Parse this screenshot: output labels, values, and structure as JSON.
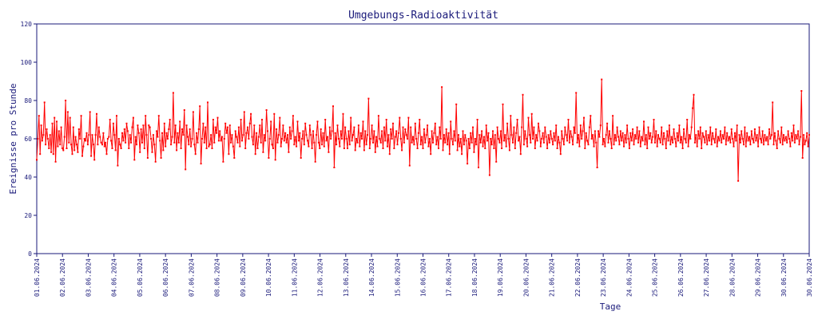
{
  "chart_data": {
    "type": "line",
    "title": "Umgebungs-Radioaktivität",
    "xlabel": "Tage",
    "ylabel": "Ereignisse pro Stunde",
    "ylim": [
      0,
      120
    ],
    "yticks": [
      "0",
      "20",
      "40",
      "60",
      "80",
      "100",
      "120"
    ],
    "xticks": [
      "01.06.2024",
      "02.06.2024",
      "03.06.2024",
      "04.06.2024",
      "05.06.2024",
      "06.06.2024",
      "07.06.2024",
      "08.06.2024",
      "09.06.2024",
      "10.06.2024",
      "11.06.2024",
      "12.06.2024",
      "13.06.2024",
      "14.06.2024",
      "15.06.2024",
      "16.06.2024",
      "17.06.2024",
      "18.06.2024",
      "19.06.2024",
      "20.06.2024",
      "21.06.2024",
      "22.06.2024",
      "23.06.2024",
      "24.06.2024",
      "25.06.2024",
      "26.06.2024",
      "27.06.2024",
      "28.06.2024",
      "29.06.2024",
      "30.06.2024",
      "30.06.2024"
    ],
    "grid": false,
    "series": [
      {
        "color": "#ff0000",
        "marker": "square",
        "x_unit": "hours since 01.06.2024 00:00",
        "values": [
          49,
          60,
          72,
          52,
          67,
          59,
          62,
          79,
          57,
          65,
          60,
          55,
          62,
          53,
          68,
          52,
          71,
          48,
          69,
          56,
          64,
          57,
          66,
          55,
          54,
          61,
          80,
          55,
          74,
          58,
          71,
          57,
          52,
          66,
          54,
          61,
          57,
          53,
          65,
          60,
          72,
          51,
          56,
          60,
          59,
          63,
          57,
          62,
          74,
          51,
          62,
          57,
          49,
          62,
          73,
          57,
          66,
          61,
          58,
          57,
          63,
          56,
          58,
          52,
          60,
          61,
          70,
          59,
          55,
          68,
          62,
          54,
          72,
          46,
          60,
          57,
          55,
          63,
          59,
          65,
          58,
          68,
          64,
          55,
          62,
          58,
          66,
          71,
          49,
          61,
          57,
          67,
          63,
          53,
          65,
          58,
          67,
          55,
          72,
          62,
          50,
          67,
          66,
          60,
          53,
          62,
          57,
          48,
          64,
          61,
          72,
          59,
          50,
          63,
          54,
          68,
          56,
          63,
          60,
          65,
          70,
          57,
          61,
          84,
          58,
          67,
          54,
          63,
          58,
          69,
          55,
          65,
          62,
          75,
          44,
          67,
          61,
          57,
          65,
          56,
          60,
          74,
          57,
          52,
          63,
          58,
          65,
          77,
          47,
          60,
          68,
          58,
          66,
          55,
          79,
          56,
          57,
          62,
          55,
          70,
          58,
          66,
          63,
          71,
          59,
          64,
          59,
          61,
          48,
          60,
          68,
          63,
          66,
          52,
          67,
          58,
          62,
          56,
          50,
          64,
          61,
          58,
          66,
          56,
          70,
          59,
          62,
          74,
          55,
          63,
          66,
          60,
          68,
          73,
          61,
          57,
          67,
          52,
          63,
          55,
          61,
          67,
          58,
          70,
          53,
          62,
          59,
          75,
          64,
          50,
          60,
          69,
          57,
          55,
          73,
          49,
          65,
          58,
          62,
          71,
          56,
          60,
          67,
          59,
          63,
          58,
          62,
          53,
          66,
          60,
          64,
          72,
          57,
          61,
          56,
          69,
          59,
          63,
          50,
          60,
          64,
          57,
          68,
          62,
          59,
          56,
          67,
          62,
          55,
          64,
          58,
          48,
          62,
          69,
          58,
          55,
          65,
          57,
          63,
          56,
          70,
          59,
          61,
          53,
          66,
          60,
          64,
          77,
          45,
          63,
          57,
          67,
          60,
          56,
          64,
          60,
          73,
          55,
          66,
          60,
          55,
          64,
          57,
          71,
          59,
          62,
          66,
          54,
          60,
          58,
          67,
          56,
          63,
          60,
          69,
          54,
          64,
          57,
          62,
          81,
          55,
          60,
          67,
          58,
          64,
          53,
          61,
          56,
          72,
          60,
          58,
          64,
          55,
          66,
          59,
          70,
          56,
          62,
          52,
          65,
          60,
          68,
          55,
          61,
          64,
          57,
          63,
          71,
          60,
          54,
          66,
          58,
          65,
          62,
          60,
          71,
          46,
          66,
          58,
          61,
          57,
          68,
          60,
          55,
          63,
          70,
          57,
          61,
          55,
          65,
          58,
          62,
          67,
          56,
          60,
          52,
          64,
          58,
          63,
          68,
          57,
          61,
          55,
          66,
          60,
          87,
          54,
          62,
          58,
          65,
          57,
          63,
          52,
          69,
          60,
          57,
          64,
          59,
          78,
          54,
          62,
          56,
          60,
          52,
          64,
          57,
          62,
          59,
          47,
          60,
          55,
          63,
          58,
          66,
          53,
          60,
          57,
          70,
          45,
          62,
          58,
          64,
          56,
          61,
          55,
          67,
          59,
          63,
          41,
          60,
          57,
          64,
          55,
          62,
          48,
          66,
          60,
          58,
          64,
          55,
          78,
          59,
          62,
          56,
          68,
          60,
          54,
          72,
          62,
          58,
          66,
          55,
          63,
          70,
          59,
          61,
          52,
          66,
          83,
          57,
          64,
          60,
          56,
          71,
          62,
          58,
          73,
          60,
          66,
          55,
          62,
          59,
          68,
          64,
          56,
          60,
          63,
          58,
          66,
          61,
          55,
          62,
          58,
          64,
          60,
          57,
          63,
          59,
          67,
          55,
          61,
          58,
          52,
          64,
          60,
          57,
          66,
          62,
          59,
          70,
          58,
          64,
          61,
          57,
          66,
          63,
          84,
          58,
          62,
          56,
          67,
          60,
          64,
          71,
          55,
          63,
          59,
          57,
          66,
          72,
          60,
          62,
          56,
          64,
          58,
          45,
          64,
          61,
          67,
          91,
          57,
          60,
          56,
          62,
          68,
          58,
          64,
          60,
          55,
          72,
          57,
          62,
          59,
          66,
          61,
          57,
          64,
          59,
          63,
          56,
          62,
          58,
          67,
          60,
          55,
          63,
          59,
          65,
          57,
          62,
          60,
          66,
          58,
          64,
          56,
          61,
          59,
          69,
          57,
          62,
          55,
          66,
          60,
          63,
          58,
          61,
          70,
          58,
          64,
          56,
          62,
          60,
          58,
          66,
          57,
          63,
          60,
          55,
          64,
          59,
          67,
          57,
          61,
          58,
          65,
          60,
          56,
          63,
          59,
          67,
          58,
          61,
          55,
          65,
          60,
          58,
          70,
          56,
          62,
          60,
          66,
          76,
          83,
          58,
          62,
          56,
          64,
          60,
          66,
          55,
          63,
          61,
          58,
          64,
          57,
          62,
          59,
          66,
          57,
          63,
          60,
          58,
          65,
          56,
          61,
          59,
          64,
          58,
          62,
          60,
          66,
          57,
          63,
          59,
          61,
          58,
          65,
          60,
          56,
          63,
          59,
          67,
          38,
          62,
          58,
          64,
          60,
          57,
          66,
          56,
          63,
          59,
          61,
          57,
          64,
          60,
          58,
          65,
          59,
          62,
          56,
          66,
          60,
          58,
          64,
          57,
          62,
          59,
          61,
          57,
          65,
          60,
          62,
          79,
          57,
          63,
          59,
          55,
          64,
          60,
          58,
          66,
          57,
          62,
          59,
          61,
          58,
          64,
          60,
          56,
          63,
          59,
          67,
          58,
          62,
          60,
          64,
          57,
          61,
          85,
          50,
          62,
          57,
          59,
          63,
          56,
          62
        ]
      }
    ]
  }
}
